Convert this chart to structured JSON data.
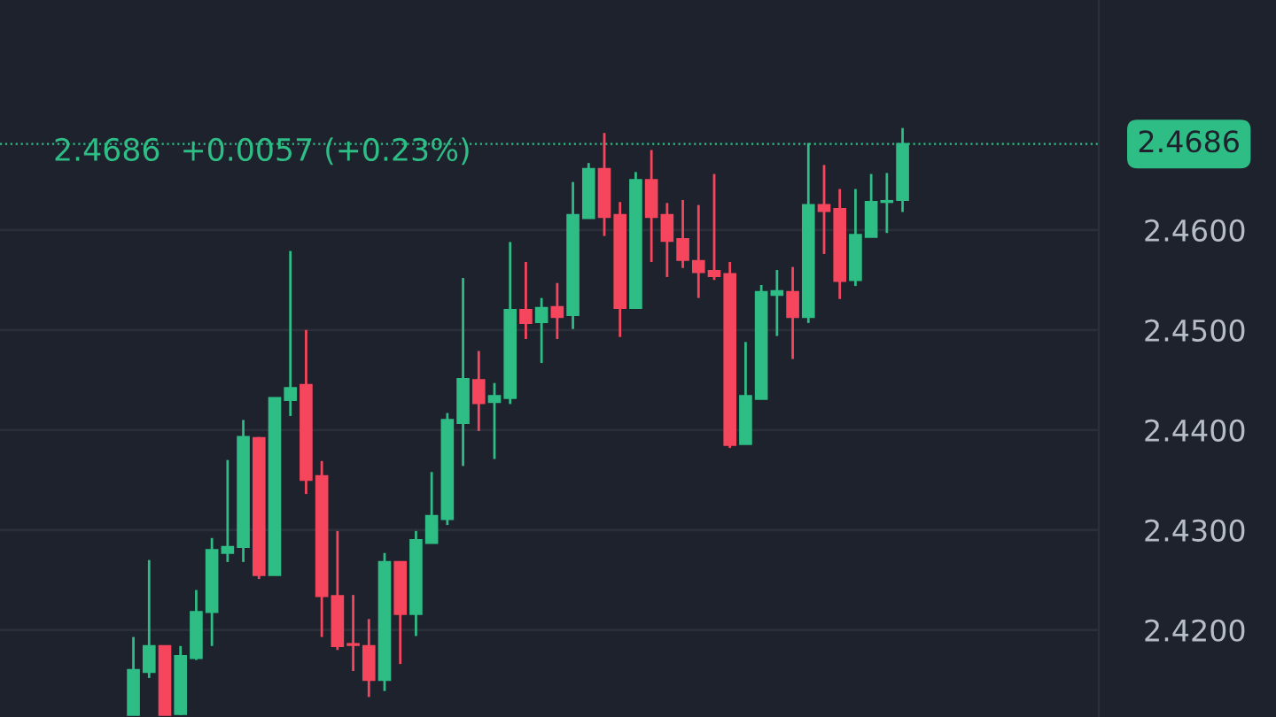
{
  "chart_data": {
    "type": "candlestick",
    "subtitle": "2.4686  +0.0057 (+0.23%)",
    "categories": [
      null,
      null,
      null,
      null,
      null,
      null,
      null,
      null,
      null,
      null,
      null,
      null,
      null,
      null,
      null,
      null,
      null,
      null,
      null,
      null,
      null,
      null,
      null,
      null,
      null,
      null,
      null,
      null,
      null,
      null,
      null,
      null,
      null,
      null,
      null,
      null,
      null,
      null,
      null,
      null,
      null,
      null,
      null,
      null,
      null,
      null,
      null,
      null,
      null,
      null,
      null,
      null,
      null,
      null,
      null,
      null,
      null,
      null,
      null,
      null,
      null,
      null,
      null,
      null,
      null,
      null,
      null,
      null,
      null,
      null
    ],
    "ohlc": [
      null,
      null,
      null,
      null,
      null,
      null,
      null,
      null,
      [
        2.4115,
        2.4193,
        2.4115,
        2.416
      ],
      [
        2.4158,
        2.427,
        2.4152,
        2.4184
      ],
      [
        2.4184,
        2.4184,
        2.4115,
        2.4115
      ],
      [
        2.4116,
        2.4184,
        2.4115,
        2.4174
      ],
      [
        2.4172,
        2.424,
        2.417,
        2.4218
      ],
      [
        2.4218,
        2.4292,
        2.4184,
        2.428
      ],
      [
        2.4277,
        2.437,
        2.4268,
        2.4283
      ],
      [
        2.4283,
        2.441,
        2.4268,
        2.4393
      ],
      [
        2.4392,
        2.4393,
        2.4251,
        2.4255
      ],
      [
        2.4255,
        2.4432,
        2.4255,
        2.4432
      ],
      [
        2.443,
        2.4579,
        2.4414,
        2.4442
      ],
      [
        2.4445,
        2.45,
        2.4336,
        2.435
      ],
      [
        2.4354,
        2.4369,
        2.4193,
        2.4234
      ],
      [
        2.4234,
        2.4299,
        2.418,
        2.4184
      ],
      [
        2.4186,
        2.4235,
        2.4159,
        2.4185
      ],
      [
        2.4184,
        2.4211,
        2.4133,
        2.415
      ],
      [
        2.415,
        2.4277,
        2.4139,
        2.4268
      ],
      [
        2.4268,
        2.4268,
        2.4166,
        2.4216
      ],
      [
        2.4216,
        2.4299,
        2.4194,
        2.429
      ],
      [
        2.4287,
        2.4358,
        2.4287,
        2.4314
      ],
      [
        2.4311,
        2.4417,
        2.4305,
        2.441
      ],
      [
        2.4407,
        2.4552,
        2.4364,
        2.4451
      ],
      [
        2.445,
        2.4479,
        2.4399,
        2.4427
      ],
      [
        2.4428,
        2.4447,
        2.4371,
        2.4434
      ],
      [
        2.4432,
        2.4588,
        2.4426,
        2.452
      ],
      [
        2.452,
        2.4568,
        2.4491,
        2.4507
      ],
      [
        2.4508,
        2.4532,
        2.4467,
        2.4522
      ],
      [
        2.4523,
        2.4547,
        2.4491,
        2.4513
      ],
      [
        2.4515,
        2.4648,
        2.4501,
        2.4615
      ],
      [
        2.4612,
        2.4667,
        2.4612,
        2.4661
      ],
      [
        2.4661,
        2.4697,
        2.4594,
        2.4613
      ],
      [
        2.4615,
        2.4628,
        2.4493,
        2.4522
      ],
      [
        2.4522,
        2.4658,
        2.4522,
        2.465
      ],
      [
        2.465,
        2.468,
        2.4568,
        2.4613
      ],
      [
        2.4615,
        2.4627,
        2.4553,
        2.4589
      ],
      [
        2.4591,
        2.463,
        2.4562,
        2.457
      ],
      [
        2.4569,
        2.4625,
        2.4532,
        2.4558
      ],
      [
        2.4559,
        2.4656,
        2.455,
        2.4554
      ],
      [
        2.4556,
        2.4568,
        2.4382,
        2.4385
      ],
      [
        2.4386,
        2.4488,
        2.4386,
        2.4434
      ],
      [
        2.4431,
        2.4545,
        2.4431,
        2.4538
      ],
      [
        2.4535,
        2.456,
        2.4494,
        2.4539
      ],
      [
        2.4538,
        2.4563,
        2.4471,
        2.4513
      ],
      [
        2.4513,
        2.4687,
        2.4507,
        2.4625
      ],
      [
        2.4625,
        2.4665,
        2.4576,
        2.4619
      ],
      [
        2.4621,
        2.4641,
        2.4531,
        2.4549
      ],
      [
        2.455,
        2.4641,
        2.4544,
        2.4595
      ],
      [
        2.4593,
        2.4656,
        2.4593,
        2.4628
      ],
      [
        2.4628,
        2.4657,
        2.4597,
        2.4629
      ],
      [
        2.463,
        2.4702,
        2.4618,
        2.4686
      ],
      null,
      null,
      null,
      null,
      null,
      null,
      null,
      null,
      null,
      null,
      null,
      null
    ],
    "colors": [
      null,
      null,
      null,
      null,
      null,
      null,
      null,
      null,
      "#2ebd85",
      "#2ebd85",
      "#f6465d",
      "#2ebd85",
      "#2ebd85",
      "#2ebd85",
      "#2ebd85",
      "#2ebd85",
      "#f6465d",
      "#2ebd85",
      "#2ebd85",
      "#f6465d",
      "#f6465d",
      "#f6465d",
      "#f6465d",
      "#f6465d",
      "#2ebd85",
      "#f6465d",
      "#2ebd85",
      "#2ebd85",
      "#2ebd85",
      "#2ebd85",
      "#f6465d",
      "#2ebd85",
      "#2ebd85",
      "#f6465d",
      "#2ebd85",
      "#f6465d",
      "#2ebd85",
      "#2ebd85",
      "#f6465d",
      "#f6465d",
      "#2ebd85",
      "#f6465d",
      "#f6465d",
      "#f6465d",
      "#f6465d",
      "#f6465d",
      "#f6465d",
      "#2ebd85",
      "#2ebd85",
      "#2ebd85",
      "#f6465d",
      "#2ebd85",
      "#f6465d",
      "#f6465d",
      "#2ebd85",
      "#2ebd85",
      "#2ebd85",
      "#2ebd85",
      null,
      null,
      null,
      null,
      null,
      null,
      null,
      null,
      null,
      null,
      null,
      null
    ],
    "ylim": [
      2.4113,
      2.483
    ],
    "yticks": [
      {
        "value": 2.42,
        "label": "2.4200"
      },
      {
        "value": 2.43,
        "label": "2.4300"
      },
      {
        "value": 2.44,
        "label": "2.4400"
      },
      {
        "value": 2.45,
        "label": "2.4500"
      },
      {
        "value": 2.46,
        "label": "2.4600"
      }
    ],
    "tick_labels": "y",
    "grid": "y",
    "ref_lines": [
      {
        "axis": "y",
        "value": 2.4686,
        "label": "2.4686",
        "color": "#2ebd85",
        "line_style": "dotted"
      }
    ]
  }
}
